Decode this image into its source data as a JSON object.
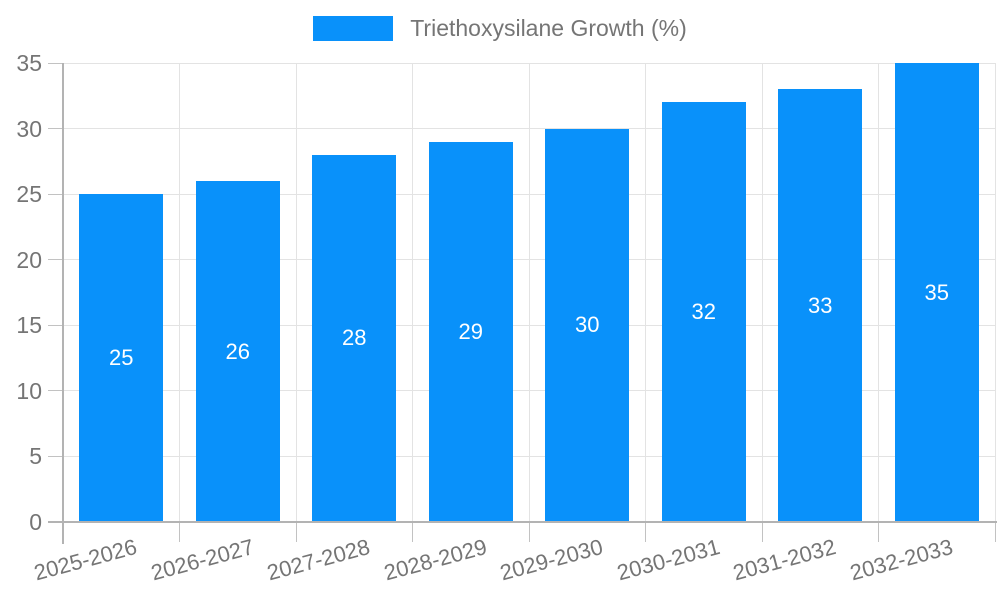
{
  "chart_data": {
    "type": "bar",
    "legend": {
      "label": "Triethoxysilane Growth (%)",
      "position": "top-center"
    },
    "categories": [
      "2025-2026",
      "2026-2027",
      "2027-2028",
      "2028-2029",
      "2029-2030",
      "2030-2031",
      "2031-2032",
      "2032-2033"
    ],
    "series": [
      {
        "name": "Triethoxysilane Growth (%)",
        "values": [
          25,
          26,
          28,
          29,
          30,
          32,
          33,
          35
        ],
        "bar_labels": [
          "25",
          "26",
          "28",
          "29",
          "30",
          "32",
          "33",
          "35"
        ]
      }
    ],
    "xlabel": "",
    "ylabel": "",
    "ylim": [
      0,
      35
    ],
    "yticks": [
      0,
      5,
      10,
      15,
      20,
      25,
      30,
      35
    ],
    "grid": true,
    "colors": {
      "bar": "#0991fa",
      "grid": "#e3e3e3",
      "axis": "#b3b3b3",
      "tick": "#c2c2c2",
      "tick_text": "#757575",
      "bar_label_text": "#ffffff",
      "background": "#ffffff"
    }
  }
}
